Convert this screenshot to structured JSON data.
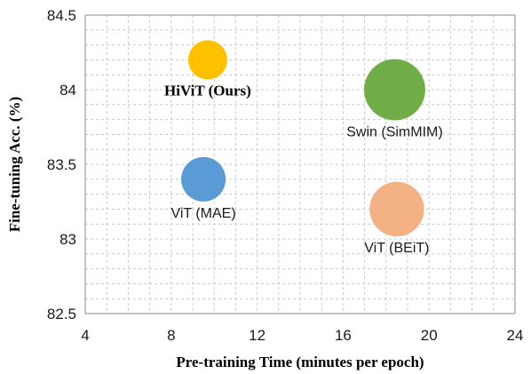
{
  "chart_data": {
    "type": "bubble",
    "xlabel": "Pre-training Time (minutes per epoch)",
    "ylabel": "Fine-tuning Acc. (%)",
    "xlim": [
      4,
      24
    ],
    "ylim": [
      82.5,
      84.5
    ],
    "x_ticks": [
      "4",
      "8",
      "12",
      "16",
      "20",
      "24"
    ],
    "y_ticks": [
      "82.5",
      "83",
      "83.5",
      "84",
      "84.5"
    ],
    "x_tick_values": [
      4,
      8,
      12,
      16,
      20,
      24
    ],
    "y_tick_values": [
      82.5,
      83,
      83.5,
      84,
      84.5
    ],
    "grid": true,
    "series": [
      {
        "name": "HiViT (Ours)",
        "x": 9.7,
        "y": 84.2,
        "size": 1.0,
        "color": "#FFC000",
        "label_pos": "below",
        "bold": true
      },
      {
        "name": "Swin (SimMIM)",
        "x": 18.4,
        "y": 84.0,
        "size": 2.45,
        "color": "#70AD47",
        "label_pos": "below",
        "bold": false
      },
      {
        "name": "ViT (MAE)",
        "x": 9.5,
        "y": 83.4,
        "size": 1.3,
        "color": "#5B9BD5",
        "label_pos": "below",
        "bold": false
      },
      {
        "name": "ViT (BEiT)",
        "x": 18.5,
        "y": 83.2,
        "size": 1.95,
        "color": "#F4B183",
        "label_pos": "below",
        "bold": false
      }
    ]
  }
}
